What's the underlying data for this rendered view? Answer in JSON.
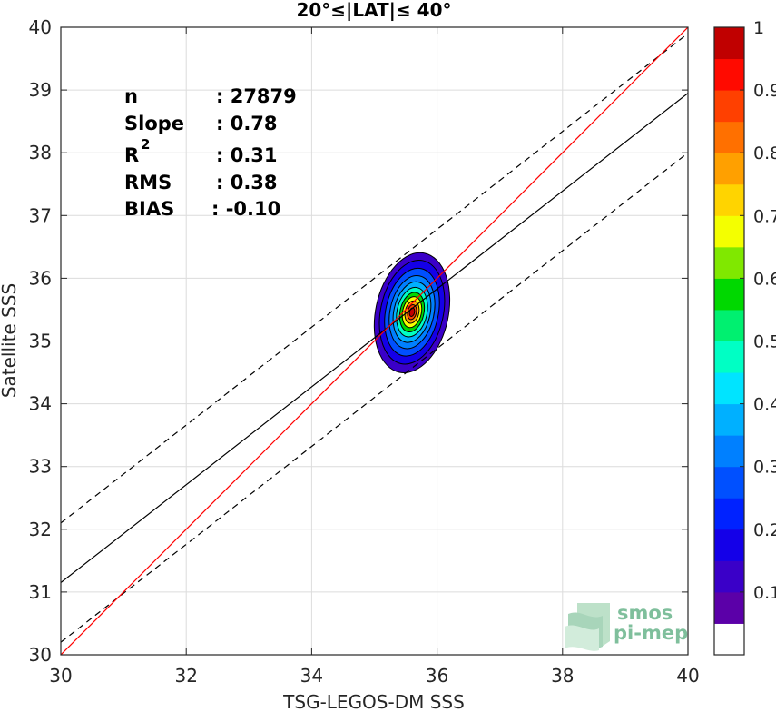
{
  "chart_data": {
    "type": "contour-scatter",
    "title": "20°≤|LAT|≤ 40°",
    "xlabel": "TSG-LEGOS-DM SSS",
    "ylabel": "Satellite SSS",
    "xlim": [
      30,
      40
    ],
    "ylim": [
      30,
      40
    ],
    "xticks": [
      "30",
      "32",
      "34",
      "36",
      "38",
      "40"
    ],
    "yticks": [
      "30",
      "31",
      "32",
      "33",
      "34",
      "35",
      "36",
      "37",
      "38",
      "39",
      "40"
    ],
    "grid": true,
    "stats": [
      {
        "label": "n",
        "value": ": 27879"
      },
      {
        "label": "Slope",
        "value": ": 0.78"
      },
      {
        "label": "R",
        "sup": "2",
        "value": ": 0.31"
      },
      {
        "label": "RMS",
        "value": ": 0.38"
      },
      {
        "label": "BIAS",
        "value": ": -0.10"
      }
    ],
    "lines": {
      "identity": {
        "slope": 1,
        "intercept": 0,
        "color": "#ff0000"
      },
      "fit": {
        "slope": 0.78,
        "intercept": 7.75,
        "color": "#000000"
      },
      "fit_upper": {
        "slope": 0.78,
        "intercept": 8.7,
        "color": "#000000",
        "dash": true
      },
      "fit_lower": {
        "slope": 0.78,
        "intercept": 6.8,
        "color": "#000000",
        "dash": true
      }
    },
    "density_peak": {
      "x": 35.6,
      "y": 35.45
    },
    "colorbar": {
      "ticks": [
        "0.1",
        "0.2",
        "0.3",
        "0.4",
        "0.5",
        "0.6",
        "0.7",
        "0.8",
        "0.9",
        "1"
      ],
      "tick_values": [
        0.1,
        0.2,
        0.3,
        0.4,
        0.5,
        0.6,
        0.7,
        0.8,
        0.9,
        1.0
      ],
      "levels": [
        0,
        0.05,
        0.1,
        0.15,
        0.2,
        0.25,
        0.3,
        0.35,
        0.4,
        0.45,
        0.5,
        0.55,
        0.6,
        0.65,
        0.7,
        0.75,
        0.8,
        0.85,
        0.9,
        0.95,
        1.0
      ],
      "colors": [
        "#ffffff",
        "#5b00a8",
        "#3a00c8",
        "#1400e8",
        "#0022ff",
        "#0050ff",
        "#0080ff",
        "#00b0ff",
        "#00e4ff",
        "#00ffc4",
        "#00f070",
        "#00d800",
        "#80e800",
        "#f4ff00",
        "#ffd400",
        "#ffa000",
        "#ff7000",
        "#ff4000",
        "#ff0a00",
        "#c00000"
      ]
    },
    "contour_levels": [
      {
        "rx": 0.58,
        "ry": 0.97,
        "cx": 35.6,
        "cy": 35.45,
        "color": "#3a00c8"
      },
      {
        "rx": 0.5,
        "ry": 0.84,
        "cx": 35.6,
        "cy": 35.46,
        "color": "#1400e8"
      },
      {
        "rx": 0.42,
        "ry": 0.71,
        "cx": 35.6,
        "cy": 35.46,
        "color": "#0050ff"
      },
      {
        "rx": 0.35,
        "ry": 0.59,
        "cx": 35.6,
        "cy": 35.46,
        "color": "#0080ff"
      },
      {
        "rx": 0.29,
        "ry": 0.49,
        "cx": 35.6,
        "cy": 35.46,
        "color": "#00b0ff"
      },
      {
        "rx": 0.24,
        "ry": 0.4,
        "cx": 35.6,
        "cy": 35.46,
        "color": "#00ffc4"
      },
      {
        "rx": 0.19,
        "ry": 0.32,
        "cx": 35.6,
        "cy": 35.46,
        "color": "#00d800"
      },
      {
        "rx": 0.15,
        "ry": 0.25,
        "cx": 35.6,
        "cy": 35.46,
        "color": "#f4ff00"
      },
      {
        "rx": 0.11,
        "ry": 0.18,
        "cx": 35.6,
        "cy": 35.46,
        "color": "#ffa000"
      },
      {
        "rx": 0.07,
        "ry": 0.12,
        "cx": 35.6,
        "cy": 35.46,
        "color": "#ff4000"
      },
      {
        "rx": 0.04,
        "ry": 0.07,
        "cx": 35.6,
        "cy": 35.46,
        "color": "#c00000"
      }
    ]
  },
  "logo": {
    "line1": "smos",
    "line2": "pi-mep"
  }
}
